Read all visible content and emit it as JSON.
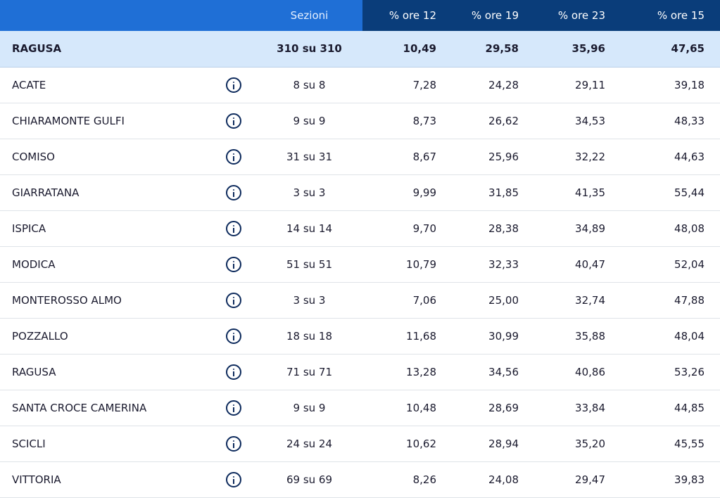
{
  "header": {
    "blank": "",
    "sections": "Sezioni",
    "col12": "% ore 12",
    "col19": "% ore 19",
    "col23": "% ore 23",
    "col15": "% ore 15"
  },
  "colors": {
    "header_blue": "#1f6fd6",
    "header_dark": "#0a3d7a",
    "total_row_bg": "#d6e8fb"
  },
  "total": {
    "name": "RAGUSA",
    "sections": "310 su 310",
    "v12": "10,49",
    "v19": "29,58",
    "v23": "35,96",
    "v15": "47,65"
  },
  "rows": [
    {
      "name": "ACATE",
      "sections": "8 su 8",
      "v12": "7,28",
      "v19": "24,28",
      "v23": "29,11",
      "v15": "39,18"
    },
    {
      "name": "CHIARAMONTE GULFI",
      "sections": "9 su 9",
      "v12": "8,73",
      "v19": "26,62",
      "v23": "34,53",
      "v15": "48,33"
    },
    {
      "name": "COMISO",
      "sections": "31 su 31",
      "v12": "8,67",
      "v19": "25,96",
      "v23": "32,22",
      "v15": "44,63"
    },
    {
      "name": "GIARRATANA",
      "sections": "3 su 3",
      "v12": "9,99",
      "v19": "31,85",
      "v23": "41,35",
      "v15": "55,44"
    },
    {
      "name": "ISPICA",
      "sections": "14 su 14",
      "v12": "9,70",
      "v19": "28,38",
      "v23": "34,89",
      "v15": "48,08"
    },
    {
      "name": "MODICA",
      "sections": "51 su 51",
      "v12": "10,79",
      "v19": "32,33",
      "v23": "40,47",
      "v15": "52,04"
    },
    {
      "name": "MONTEROSSO ALMO",
      "sections": "3 su 3",
      "v12": "7,06",
      "v19": "25,00",
      "v23": "32,74",
      "v15": "47,88"
    },
    {
      "name": "POZZALLO",
      "sections": "18 su 18",
      "v12": "11,68",
      "v19": "30,99",
      "v23": "35,88",
      "v15": "48,04"
    },
    {
      "name": "RAGUSA",
      "sections": "71 su 71",
      "v12": "13,28",
      "v19": "34,56",
      "v23": "40,86",
      "v15": "53,26"
    },
    {
      "name": "SANTA CROCE CAMERINA",
      "sections": "9 su 9",
      "v12": "10,48",
      "v19": "28,69",
      "v23": "33,84",
      "v15": "44,85"
    },
    {
      "name": "SCICLI",
      "sections": "24 su 24",
      "v12": "10,62",
      "v19": "28,94",
      "v23": "35,20",
      "v15": "45,55"
    },
    {
      "name": "VITTORIA",
      "sections": "69 su 69",
      "v12": "8,26",
      "v19": "24,08",
      "v23": "29,47",
      "v15": "39,83"
    }
  ],
  "row_icon": "info-icon"
}
